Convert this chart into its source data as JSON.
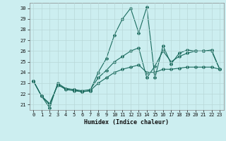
{
  "title": "",
  "xlabel": "Humidex (Indice chaleur)",
  "background_color": "#cceef0",
  "line_color": "#1a6b5e",
  "grid_color": "#b8d8d8",
  "xlim": [
    -0.5,
    23.5
  ],
  "ylim": [
    20.5,
    30.5
  ],
  "yticks": [
    21,
    22,
    23,
    24,
    25,
    26,
    27,
    28,
    29,
    30
  ],
  "xticks": [
    0,
    1,
    2,
    3,
    4,
    5,
    6,
    7,
    8,
    9,
    10,
    11,
    12,
    13,
    14,
    15,
    16,
    17,
    18,
    19,
    20,
    21,
    22,
    23
  ],
  "series1": [
    [
      0,
      23.2
    ],
    [
      1,
      21.8
    ],
    [
      2,
      20.7
    ],
    [
      3,
      23.0
    ],
    [
      4,
      22.5
    ],
    [
      5,
      22.4
    ],
    [
      6,
      22.2
    ],
    [
      7,
      22.3
    ],
    [
      8,
      24.0
    ],
    [
      9,
      25.3
    ],
    [
      10,
      27.5
    ],
    [
      11,
      29.0
    ],
    [
      12,
      30.0
    ],
    [
      13,
      27.7
    ],
    [
      14,
      30.1
    ],
    [
      15,
      23.5
    ],
    [
      16,
      26.5
    ],
    [
      17,
      24.8
    ],
    [
      18,
      25.8
    ],
    [
      19,
      26.1
    ],
    [
      20,
      26.0
    ],
    [
      21,
      26.0
    ],
    [
      22,
      26.1
    ],
    [
      23,
      24.3
    ]
  ],
  "series2": [
    [
      0,
      23.2
    ],
    [
      1,
      21.8
    ],
    [
      2,
      21.1
    ],
    [
      3,
      22.8
    ],
    [
      4,
      22.5
    ],
    [
      5,
      22.4
    ],
    [
      6,
      22.3
    ],
    [
      7,
      22.4
    ],
    [
      8,
      23.5
    ],
    [
      9,
      24.2
    ],
    [
      10,
      25.0
    ],
    [
      11,
      25.5
    ],
    [
      12,
      26.0
    ],
    [
      13,
      26.3
    ],
    [
      14,
      23.5
    ],
    [
      15,
      24.6
    ],
    [
      16,
      26.0
    ],
    [
      17,
      25.0
    ],
    [
      18,
      25.5
    ],
    [
      19,
      25.8
    ],
    [
      20,
      26.0
    ],
    [
      21,
      26.0
    ],
    [
      22,
      26.0
    ],
    [
      23,
      24.3
    ]
  ],
  "series3": [
    [
      0,
      23.2
    ],
    [
      1,
      21.8
    ],
    [
      2,
      21.0
    ],
    [
      3,
      22.9
    ],
    [
      4,
      22.4
    ],
    [
      5,
      22.3
    ],
    [
      6,
      22.2
    ],
    [
      7,
      22.3
    ],
    [
      8,
      23.0
    ],
    [
      9,
      23.5
    ],
    [
      10,
      24.0
    ],
    [
      11,
      24.3
    ],
    [
      12,
      24.5
    ],
    [
      13,
      24.7
    ],
    [
      14,
      24.0
    ],
    [
      15,
      24.0
    ],
    [
      16,
      24.3
    ],
    [
      17,
      24.3
    ],
    [
      18,
      24.4
    ],
    [
      19,
      24.5
    ],
    [
      20,
      24.5
    ],
    [
      21,
      24.5
    ],
    [
      22,
      24.5
    ],
    [
      23,
      24.3
    ]
  ]
}
